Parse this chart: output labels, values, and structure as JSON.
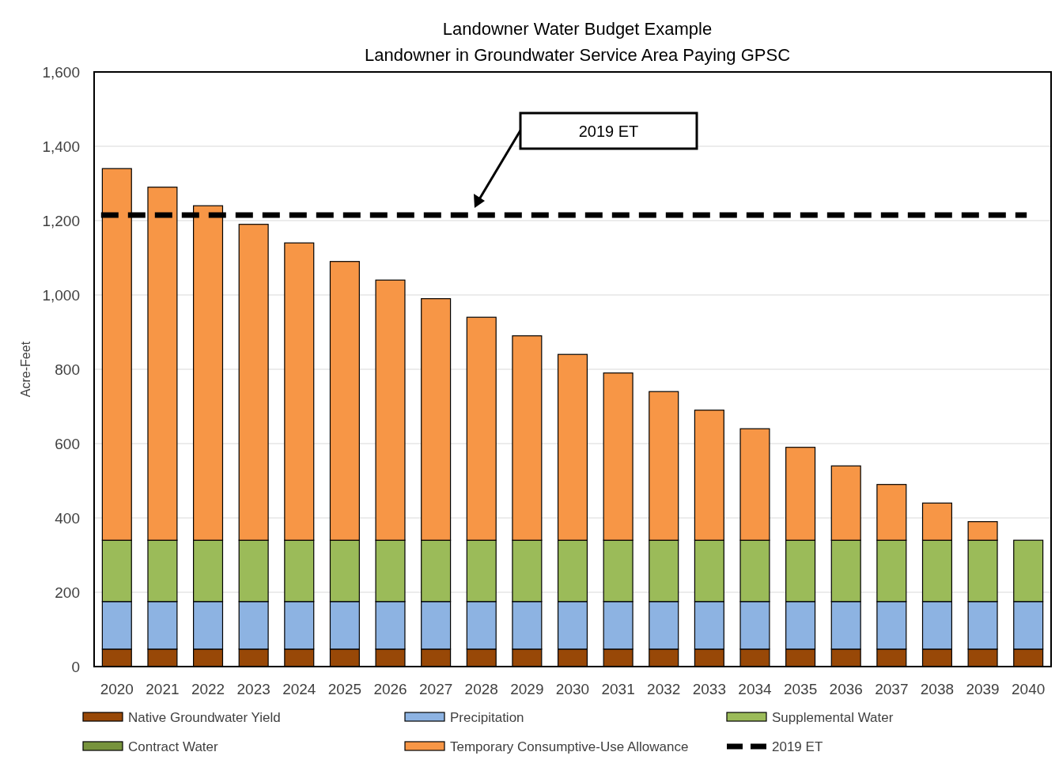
{
  "chart_data": {
    "type": "bar",
    "title": "Landowner Water Budget Example",
    "subtitle": "Landowner in Groundwater Service Area Paying GPSC",
    "ylabel": "Acre-Feet",
    "categories": [
      "2020",
      "2021",
      "2022",
      "2023",
      "2024",
      "2025",
      "2026",
      "2027",
      "2028",
      "2029",
      "2030",
      "2031",
      "2032",
      "2033",
      "2034",
      "2035",
      "2036",
      "2037",
      "2038",
      "2039",
      "2040"
    ],
    "stacked": true,
    "series": [
      {
        "name": "Native Groundwater Yield",
        "color": "#984807",
        "values": [
          47,
          47,
          47,
          47,
          47,
          47,
          47,
          47,
          47,
          47,
          47,
          47,
          47,
          47,
          47,
          47,
          47,
          47,
          47,
          47,
          47
        ]
      },
      {
        "name": "Precipitation",
        "color": "#8db3e2",
        "values": [
          128,
          128,
          128,
          128,
          128,
          128,
          128,
          128,
          128,
          128,
          128,
          128,
          128,
          128,
          128,
          128,
          128,
          128,
          128,
          128,
          128
        ]
      },
      {
        "name": "Supplemental Water",
        "color": "#9bbb59",
        "values": [
          165,
          165,
          165,
          165,
          165,
          165,
          165,
          165,
          165,
          165,
          165,
          165,
          165,
          165,
          165,
          165,
          165,
          165,
          165,
          165,
          165
        ]
      },
      {
        "name": "Contract Water",
        "color": "#77933c",
        "values": [
          0,
          0,
          0,
          0,
          0,
          0,
          0,
          0,
          0,
          0,
          0,
          0,
          0,
          0,
          0,
          0,
          0,
          0,
          0,
          0,
          0
        ]
      },
      {
        "name": "Temporary Consumptive-Use Allowance",
        "color": "#f79646",
        "values": [
          1000,
          950,
          900,
          850,
          800,
          750,
          700,
          650,
          600,
          550,
          500,
          450,
          400,
          350,
          300,
          250,
          200,
          150,
          100,
          50,
          0
        ]
      }
    ],
    "ref_lines": [
      {
        "axis": "y",
        "value": 1215,
        "label": "2019 ET",
        "color": "#000000",
        "line_style": "dashed"
      }
    ],
    "ylim": [
      0,
      1600
    ],
    "yticks": [
      0,
      {
        "value": 200,
        "label": "200"
      },
      {
        "value": 400,
        "label": "400"
      },
      {
        "value": 600,
        "label": "600"
      },
      {
        "value": 800,
        "label": "800"
      },
      {
        "value": 1000,
        "label": "1,000"
      },
      {
        "value": 1200,
        "label": "1,200"
      },
      {
        "value": 1400,
        "label": "1,400"
      },
      {
        "value": 1600,
        "label": "1,600"
      }
    ],
    "grid": "y",
    "legend": "bottom"
  }
}
